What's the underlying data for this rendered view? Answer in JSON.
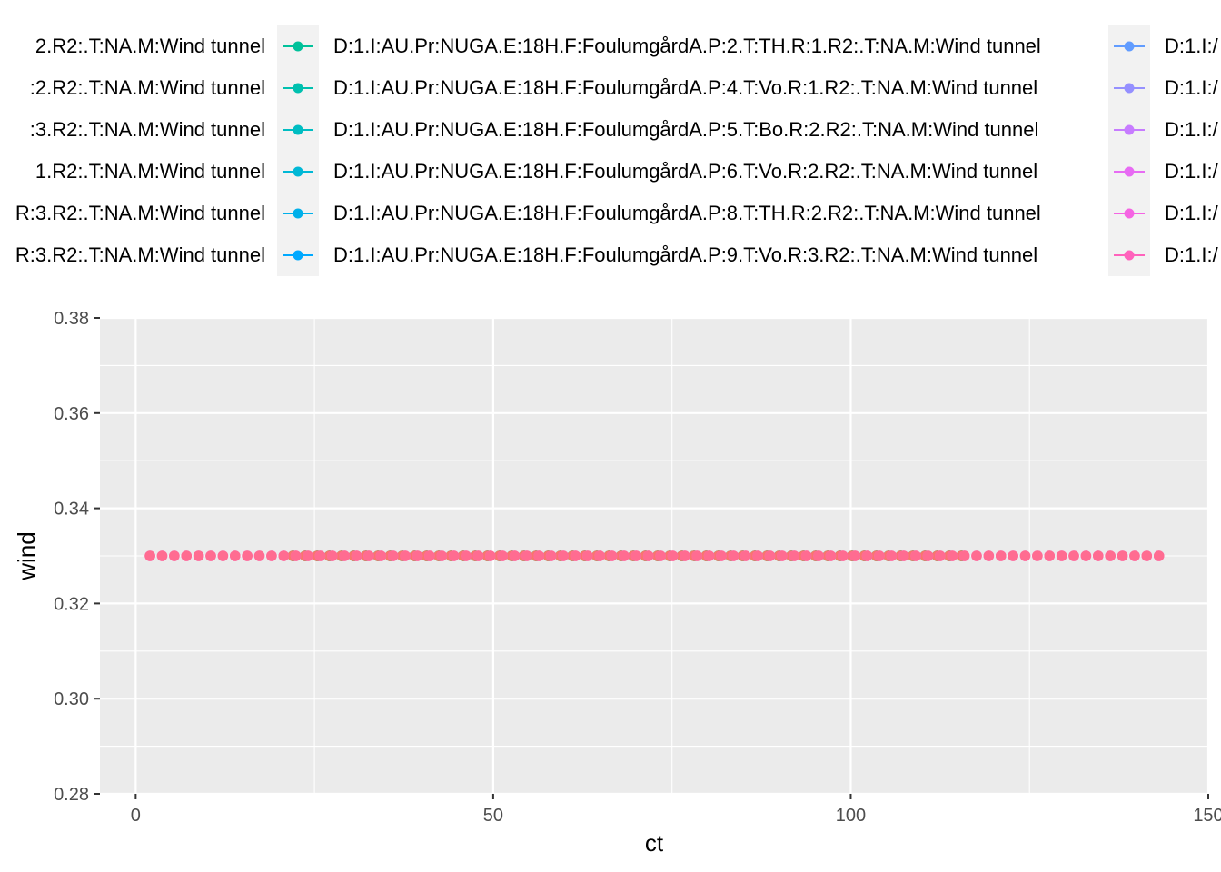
{
  "chart_data": {
    "type": "scatter",
    "title": "",
    "xlabel": "ct",
    "ylabel": "wind",
    "xlim": [
      -5,
      150
    ],
    "ylim": [
      0.28,
      0.38
    ],
    "x_ticks": [
      0,
      50,
      100,
      150
    ],
    "y_ticks": [
      0.28,
      0.3,
      0.32,
      0.34,
      0.36,
      0.38
    ],
    "x_tick_labels": [
      "0",
      "50",
      "100",
      "150"
    ],
    "y_tick_labels": [
      "0.28",
      "0.30",
      "0.32",
      "0.34",
      "0.36",
      "0.38"
    ],
    "grid": true,
    "legend_position": "top",
    "background_color": "#ebebeb",
    "grid_color": "#ffffff",
    "series": [
      {
        "color": "#00bfc4",
        "x_start": 22,
        "x_end": 117,
        "x_step": 1.7,
        "y": 0.33
      },
      {
        "color": "#00b0f6",
        "x_start": 22,
        "x_end": 117,
        "x_step": 1.7,
        "y": 0.33
      },
      {
        "color": "#7cae00",
        "x_start": 22,
        "x_end": 117,
        "x_step": 1.7,
        "y": 0.33
      },
      {
        "color": "#f8766d",
        "x_start": 22,
        "x_end": 117,
        "x_step": 1.7,
        "y": 0.33
      },
      {
        "color": "#f564e3",
        "x_start": 2,
        "x_end": 144,
        "x_step": 1.7,
        "y": 0.33
      },
      {
        "color": "#ff6c91",
        "x_start": 2,
        "x_end": 144,
        "x_step": 1.7,
        "y": 0.33
      }
    ],
    "legend": {
      "columns": [
        {
          "clipped": "left",
          "items": [
            {
              "label": "2.R2:.T:NA.M:Wind tunnel",
              "color": "#00be67"
            },
            {
              "label": ":2.R2:.T:NA.M:Wind tunnel",
              "color": "#00c08b"
            },
            {
              "label": ":3.R2:.T:NA.M:Wind tunnel",
              "color": "#00c1a7"
            },
            {
              "label": "1.R2:.T:NA.M:Wind tunnel",
              "color": "#00c0bc"
            },
            {
              "label": "R:3.R2:.T:NA.M:Wind tunnel",
              "color": "#00bdd0"
            },
            {
              "label": "R:3.R2:.T:NA.M:Wind tunnel",
              "color": "#00b8e5"
            }
          ]
        },
        {
          "clipped": "none",
          "items": [
            {
              "label": "D:1.I:AU.Pr:NUGA.E:18H.F:FoulumgårdA.P:2.T:TH.R:1.R2:.T:NA.M:Wind tunnel",
              "color": "#00c19a"
            },
            {
              "label": "D:1.I:AU.Pr:NUGA.E:18H.F:FoulumgårdA.P:4.T:Vo.R:1.R2:.T:NA.M:Wind tunnel",
              "color": "#00c0af"
            },
            {
              "label": "D:1.I:AU.Pr:NUGA.E:18H.F:FoulumgårdA.P:5.T:Bo.R:2.R2:.T:NA.M:Wind tunnel",
              "color": "#00bdc2"
            },
            {
              "label": "D:1.I:AU.Pr:NUGA.E:18H.F:FoulumgårdA.P:6.T:Vo.R:2.R2:.T:NA.M:Wind tunnel",
              "color": "#00b8d6"
            },
            {
              "label": "D:1.I:AU.Pr:NUGA.E:18H.F:FoulumgårdA.P:8.T:TH.R:2.R2:.T:NA.M:Wind tunnel",
              "color": "#00b0ea"
            },
            {
              "label": "D:1.I:AU.Pr:NUGA.E:18H.F:FoulumgårdA.P:9.T:Vo.R:3.R2:.T:NA.M:Wind tunnel",
              "color": "#00a9ff"
            }
          ]
        },
        {
          "clipped": "right",
          "items": [
            {
              "label": "D:1.I:/",
              "color": "#619cff"
            },
            {
              "label": "D:1.I:/",
              "color": "#9590ff"
            },
            {
              "label": "D:1.I:/",
              "color": "#c77cff"
            },
            {
              "label": "D:1.I:/",
              "color": "#e76bf3"
            },
            {
              "label": "D:1.I:/",
              "color": "#f564e3"
            },
            {
              "label": "D:1.I:/",
              "color": "#ff62bc"
            }
          ]
        }
      ]
    }
  }
}
